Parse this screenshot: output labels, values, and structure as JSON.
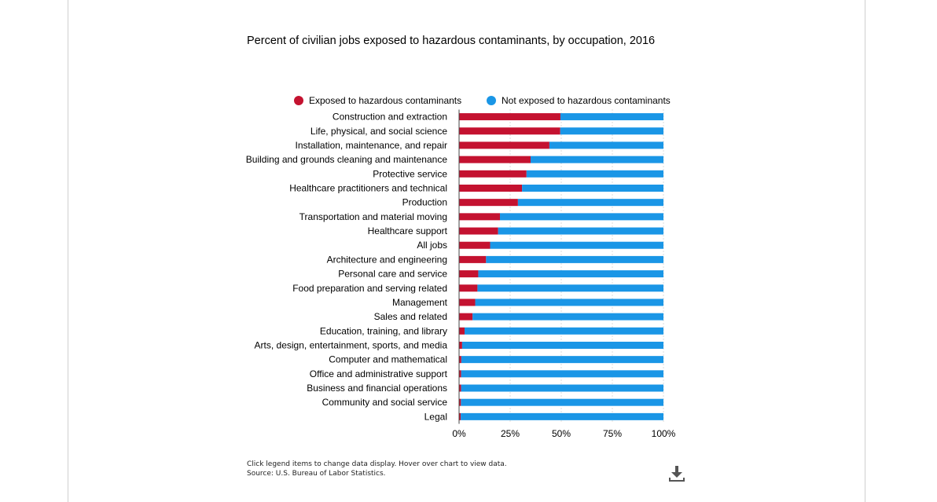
{
  "chart_data": {
    "type": "bar",
    "stacked": true,
    "orientation": "horizontal",
    "title": "Percent of civilian jobs exposed to hazardous contaminants, by occupation, 2016",
    "categories": [
      "Construction and extraction",
      "Life, physical, and social science",
      "Installation, maintenance, and repair",
      "Building and grounds cleaning and maintenance",
      "Protective service",
      "Healthcare practitioners and technical",
      "Production",
      "Transportation and material moving",
      "Healthcare support",
      "All jobs",
      "Architecture and engineering",
      "Personal care and service",
      "Food preparation and serving related",
      "Management",
      "Sales and related",
      "Education, training, and library",
      "Arts, design, entertainment, sports, and media",
      "Computer and mathematical",
      "Office and administrative support",
      "Business and financial operations",
      "Community and social service",
      "Legal"
    ],
    "series": [
      {
        "name": "Exposed to hazardous contaminants",
        "color": "#c41230",
        "values": [
          49.6,
          49.5,
          44.2,
          35.0,
          33.0,
          30.8,
          28.8,
          20.0,
          19.1,
          15.2,
          13.2,
          9.4,
          9.0,
          7.9,
          6.6,
          2.7,
          1.5,
          1.1,
          1.0,
          1.0,
          0.9,
          0.8
        ]
      },
      {
        "name": "Not exposed to hazardous contaminants",
        "color": "#1a96e6",
        "values": [
          50.4,
          50.5,
          55.8,
          65.0,
          67.0,
          69.2,
          71.2,
          80.0,
          80.9,
          84.8,
          86.8,
          90.6,
          91.0,
          92.1,
          93.4,
          97.3,
          98.5,
          98.9,
          99.0,
          99.0,
          99.1,
          99.2
        ]
      }
    ],
    "xlim": [
      0,
      100
    ],
    "x_ticks": [
      "0%",
      "25%",
      "50%",
      "75%",
      "100%"
    ],
    "grid": "vertical dotted",
    "legend": "top"
  },
  "footer": {
    "note": "Click legend items to change data display. Hover over chart to view data.",
    "source": "Source: U.S. Bureau of Labor Statistics."
  },
  "icons": {
    "download": "download-icon"
  }
}
